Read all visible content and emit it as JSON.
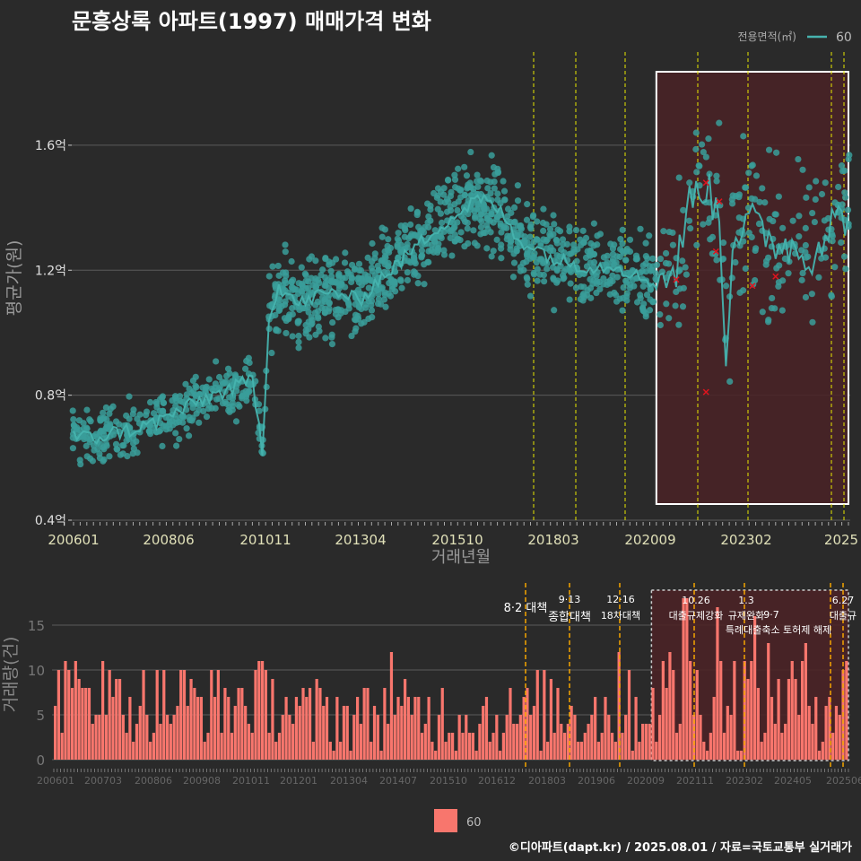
{
  "title": "문흥상록 아파트(1997) 매매가격 변화",
  "credit": "©디아파트(dapt.kr) / 2025.08.01 / 자료=국토교통부 실거래가",
  "colors": {
    "background": "#2a2a2a",
    "price_points": "#3a9e9a",
    "price_line": "#46b3ae",
    "volume_bars": "#f8766d",
    "policy_lines": "#e8e800",
    "volume_policy_lines": "#f5a500",
    "highlight_fill": "#4a2226",
    "outlier_marks": "#e0141e"
  },
  "legend_top": {
    "title": "전용면적(㎡)",
    "label": "60"
  },
  "legend_bottom": {
    "label": "60"
  },
  "chart_data": [
    {
      "type": "scatter",
      "title": "문흥상록 아파트(1997) 매매가격 변화",
      "xlabel": "거래년월",
      "ylabel": "평균가(원)",
      "xlim": [
        "2006-01",
        "2025-07"
      ],
      "ylim": [
        0.4,
        1.83
      ],
      "y_unit": "억",
      "x_ticks": [
        "200601",
        "200806",
        "201011",
        "201304",
        "201510",
        "201803",
        "202009",
        "202302",
        "2025"
      ],
      "y_ticks": [
        "0.4억",
        "0.8억",
        "1.2억",
        "1.6억"
      ],
      "grid": true,
      "legend_position": "top-right",
      "highlight_range": [
        "2020-09",
        "2025-07"
      ],
      "policy_dates": [
        "2017-08",
        "2018-09",
        "2019-12",
        "2021-10",
        "2023-01",
        "2025-01",
        "2025-06"
      ],
      "trend": [
        {
          "x": "2006-01",
          "y": 0.67
        },
        {
          "x": "2006-07",
          "y": 0.66
        },
        {
          "x": "2007-01",
          "y": 0.68
        },
        {
          "x": "2007-07",
          "y": 0.69
        },
        {
          "x": "2008-01",
          "y": 0.71
        },
        {
          "x": "2008-07",
          "y": 0.74
        },
        {
          "x": "2009-01",
          "y": 0.77
        },
        {
          "x": "2009-07",
          "y": 0.8
        },
        {
          "x": "2010-01",
          "y": 0.82
        },
        {
          "x": "2010-07",
          "y": 0.85
        },
        {
          "x": "2010-10",
          "y": 0.63
        },
        {
          "x": "2010-12",
          "y": 1.05
        },
        {
          "x": "2011-03",
          "y": 1.15
        },
        {
          "x": "2011-09",
          "y": 1.09
        },
        {
          "x": "2012-03",
          "y": 1.12
        },
        {
          "x": "2012-09",
          "y": 1.13
        },
        {
          "x": "2013-03",
          "y": 1.1
        },
        {
          "x": "2013-09",
          "y": 1.17
        },
        {
          "x": "2014-03",
          "y": 1.22
        },
        {
          "x": "2014-09",
          "y": 1.28
        },
        {
          "x": "2015-03",
          "y": 1.34
        },
        {
          "x": "2015-09",
          "y": 1.38
        },
        {
          "x": "2016-03",
          "y": 1.43
        },
        {
          "x": "2016-09",
          "y": 1.4
        },
        {
          "x": "2017-03",
          "y": 1.3
        },
        {
          "x": "2017-09",
          "y": 1.27
        },
        {
          "x": "2018-03",
          "y": 1.23
        },
        {
          "x": "2018-09",
          "y": 1.22
        },
        {
          "x": "2019-03",
          "y": 1.21
        },
        {
          "x": "2019-09",
          "y": 1.22
        },
        {
          "x": "2020-03",
          "y": 1.18
        },
        {
          "x": "2020-09",
          "y": 1.16
        },
        {
          "x": "2021-03",
          "y": 1.2
        },
        {
          "x": "2021-07",
          "y": 1.42
        },
        {
          "x": "2021-11",
          "y": 1.48
        },
        {
          "x": "2022-04",
          "y": 1.38
        },
        {
          "x": "2022-06",
          "y": 0.92
        },
        {
          "x": "2022-08",
          "y": 1.3
        },
        {
          "x": "2023-01",
          "y": 1.36
        },
        {
          "x": "2023-07",
          "y": 1.3
        },
        {
          "x": "2024-01",
          "y": 1.28
        },
        {
          "x": "2024-07",
          "y": 1.24
        },
        {
          "x": "2025-01",
          "y": 1.34
        },
        {
          "x": "2025-07",
          "y": 1.38
        }
      ],
      "outliers": [
        {
          "x": "2021-03",
          "y": 1.17
        },
        {
          "x": "2021-12",
          "y": 0.81
        },
        {
          "x": "2021-12",
          "y": 1.48
        },
        {
          "x": "2022-03",
          "y": 1.26
        },
        {
          "x": "2022-04",
          "y": 1.42
        },
        {
          "x": "2023-02",
          "y": 1.15
        },
        {
          "x": "2023-09",
          "y": 1.18
        }
      ]
    },
    {
      "type": "bar",
      "ylabel": "거래량(건)",
      "ylim": [
        0,
        18.5
      ],
      "y_ticks": [
        "0",
        "5",
        "10",
        "15"
      ],
      "x_ticks": [
        "200601",
        "200703",
        "200806",
        "200908",
        "201011",
        "201201",
        "201304",
        "201407",
        "201510",
        "201612",
        "201803",
        "201906",
        "202009",
        "202111",
        "202302",
        "202405",
        "202506"
      ],
      "highlight_range": [
        "2020-09",
        "2025-07"
      ],
      "policy_lines": [
        "2017-08",
        "2018-09",
        "2019-12",
        "2021-10",
        "2023-01",
        "2025-01",
        "2025-06"
      ],
      "annotations": [
        {
          "date": "2017-08",
          "date_label": "",
          "label": "8·2 대책"
        },
        {
          "date": "2018-09",
          "date_label": "9·13",
          "label": "종합대책"
        },
        {
          "date": "2019-12",
          "date_label": "12·16",
          "label": "18차대책"
        },
        {
          "date": "2021-10",
          "date_label": "10.26",
          "label": "대출규제강화"
        },
        {
          "date": "2023-01",
          "date_label": "1.3",
          "label": "규제완화"
        },
        {
          "date": "2023-01",
          "date_label": "",
          "label": "특례대출축소 토허제 해제"
        },
        {
          "date": "2025-01",
          "date_label": "",
          "label": "9·7"
        },
        {
          "date": "2025-06",
          "date_label": "6.27",
          "label": "대출규"
        }
      ]
    }
  ]
}
